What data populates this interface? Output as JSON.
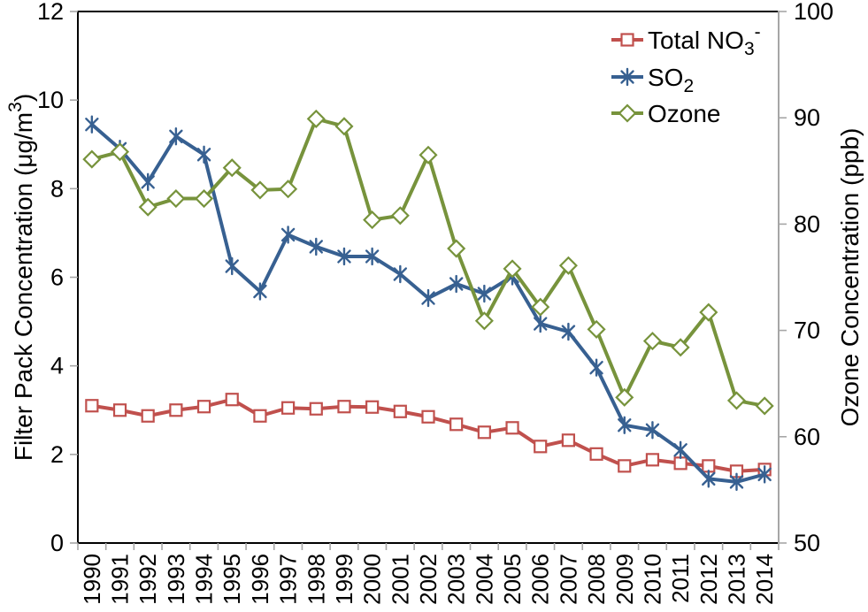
{
  "chart_data": {
    "type": "line",
    "title": "",
    "categories": [
      "1990",
      "1991",
      "1992",
      "1993",
      "1994",
      "1995",
      "1996",
      "1997",
      "1998",
      "1999",
      "2000",
      "2001",
      "2002",
      "2003",
      "2004",
      "2005",
      "2006",
      "2007",
      "2008",
      "2009",
      "2010",
      "2011",
      "2012",
      "2013",
      "2014"
    ],
    "x_tick_rotation": -90,
    "grid": false,
    "background": "#FFFFFF",
    "frame_color": "#000000",
    "tick_color": "#A6A6A6",
    "text_color": "#000000",
    "left_axis": {
      "title": "Filter Pack Concentration (μg/m3)",
      "title_parts": [
        {
          "t": "Filter Pack Concentration (μg/m"
        },
        {
          "t": "3",
          "style": "sup"
        },
        {
          "t": ")"
        }
      ],
      "min": 0,
      "max": 12,
      "ticks": [
        0,
        2,
        4,
        6,
        8,
        10,
        12
      ],
      "line_color": "#000000"
    },
    "right_axis": {
      "title": "Ozone Concentration (ppb)",
      "title_parts": [
        {
          "t": "Ozone Concentration (ppb)"
        }
      ],
      "min": 50,
      "max": 100,
      "ticks": [
        50,
        60,
        70,
        80,
        90,
        100
      ],
      "line_color": "#A6A6A6"
    },
    "legend": {
      "position": "top-right-inside",
      "border": false
    },
    "series": [
      {
        "name": "Total NO3-",
        "label_parts": [
          {
            "t": "Total NO"
          },
          {
            "t": "3",
            "style": "sub"
          },
          {
            "t": "-",
            "style": "sup"
          }
        ],
        "axis": "left",
        "color": "#C0504D",
        "marker": "square",
        "values": [
          3.1,
          3.0,
          2.87,
          3.0,
          3.08,
          3.24,
          2.87,
          3.05,
          3.03,
          3.08,
          3.07,
          2.97,
          2.85,
          2.68,
          2.5,
          2.6,
          2.18,
          2.32,
          2.01,
          1.74,
          1.88,
          1.8,
          1.74,
          1.62,
          1.66
        ]
      },
      {
        "name": "SO2",
        "label_parts": [
          {
            "t": "SO"
          },
          {
            "t": "2",
            "style": "sub"
          }
        ],
        "axis": "left",
        "color": "#376091",
        "marker": "asterisk",
        "values": [
          9.45,
          8.9,
          8.15,
          9.18,
          8.77,
          6.25,
          5.68,
          6.96,
          6.69,
          6.47,
          6.47,
          6.07,
          5.53,
          5.85,
          5.63,
          6.02,
          4.95,
          4.77,
          3.96,
          2.66,
          2.55,
          2.1,
          1.45,
          1.38,
          1.55
        ]
      },
      {
        "name": "Ozone",
        "label_parts": [
          {
            "t": "Ozone"
          }
        ],
        "axis": "right",
        "color": "#77933C",
        "marker": "diamond",
        "values": [
          86.1,
          86.8,
          81.6,
          82.4,
          82.4,
          85.3,
          83.2,
          83.3,
          89.9,
          89.2,
          80.4,
          80.8,
          86.5,
          77.7,
          70.9,
          75.8,
          72.2,
          76.1,
          70.1,
          63.7,
          69.0,
          68.4,
          71.7,
          63.4,
          62.9
        ]
      }
    ]
  }
}
